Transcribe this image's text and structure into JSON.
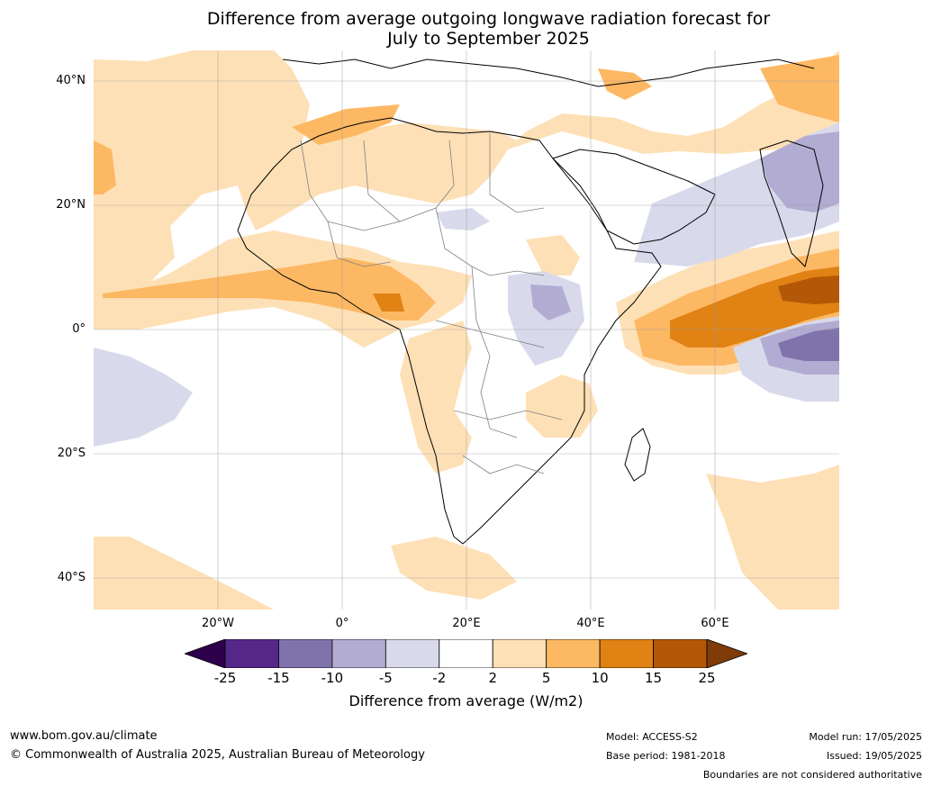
{
  "title": {
    "line1": "Difference from average outgoing longwave radiation forecast for",
    "line2": "July to September 2025"
  },
  "lat_labels": [
    "40°N",
    "20°N",
    "0°",
    "20°S",
    "40°S"
  ],
  "lon_labels": [
    "20°W",
    "0°",
    "20°E",
    "40°E",
    "60°E"
  ],
  "colorbar": {
    "title": "Difference from average (W/m2)",
    "ticks": [
      "-25",
      "-15",
      "-10",
      "-5",
      "-2",
      "2",
      "5",
      "10",
      "15",
      "25"
    ],
    "colors": [
      "#2d004b",
      "#542788",
      "#8073ac",
      "#b2abd2",
      "#d8daeb",
      "#ffffff",
      "#fee0b6",
      "#fdb863",
      "#e08214",
      "#b35806",
      "#7f3b08"
    ]
  },
  "footer": {
    "website": "www.bom.gov.au/climate",
    "copyright": "© Commonwealth of Australia 2025, Australian Bureau of Meteorology",
    "model": "Model: ACCESS-S2",
    "base_period": "Base period: 1981-2018",
    "model_run": "Model run: 17/05/2025",
    "issued": "Issued: 19/05/2025",
    "disclaimer": "Boundaries are not considered authoritative"
  }
}
